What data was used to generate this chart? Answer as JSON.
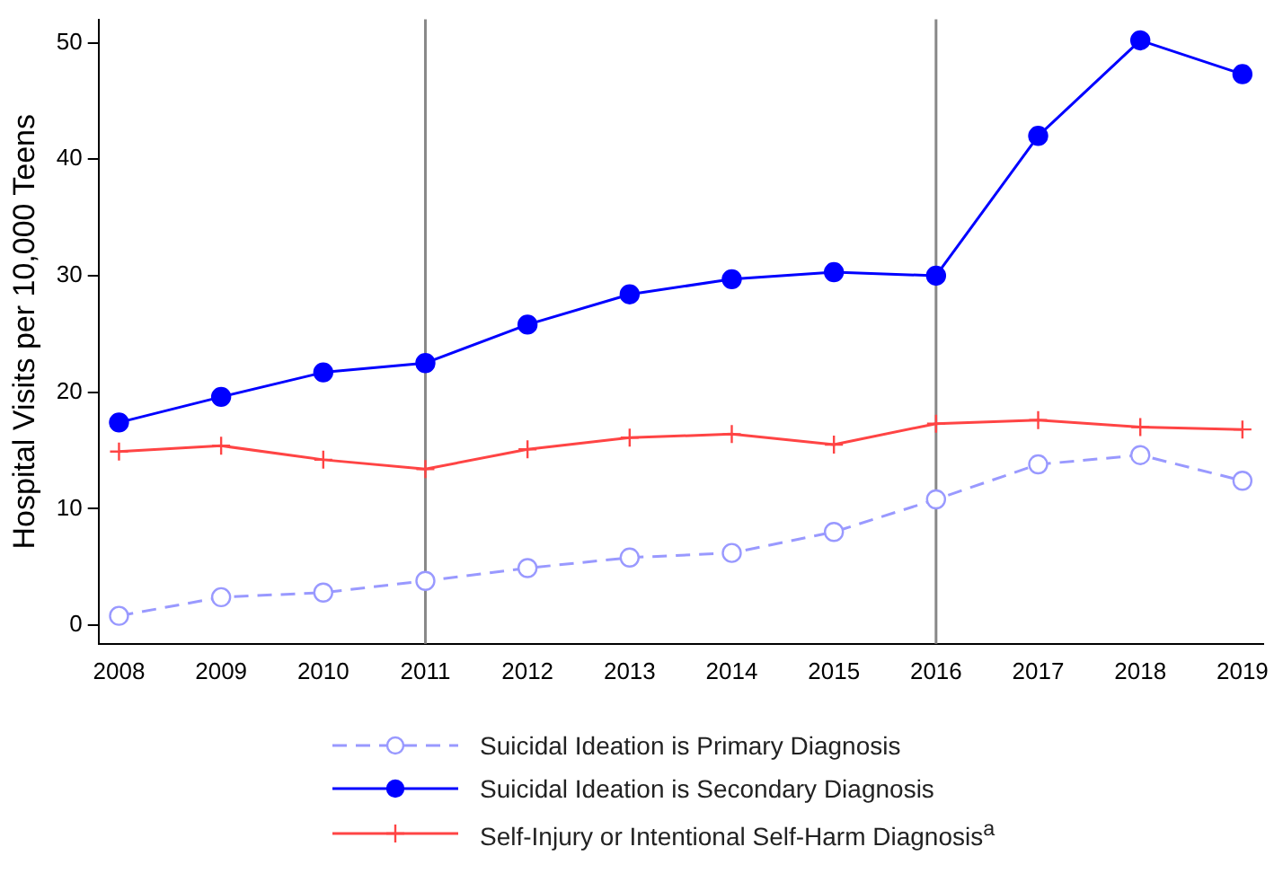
{
  "chart_data": {
    "type": "line",
    "ylabel": "Hospital Visits per 10,000 Teens",
    "x": [
      2008,
      2009,
      2010,
      2011,
      2012,
      2013,
      2014,
      2015,
      2016,
      2017,
      2018,
      2019
    ],
    "xlim": [
      2007.8,
      2019.2
    ],
    "xticks": [
      2008,
      2009,
      2010,
      2011,
      2012,
      2013,
      2014,
      2015,
      2016,
      2017,
      2018,
      2019
    ],
    "ylim": [
      -1.6,
      52
    ],
    "yticks": [
      0,
      10,
      20,
      30,
      40,
      50
    ],
    "series": [
      {
        "name": "Suicidal Ideation is Primary Diagnosis",
        "color": "#9999ff",
        "marker": "circle",
        "line_style": "dashed",
        "values": [
          0.8,
          2.4,
          2.8,
          3.8,
          4.9,
          5.8,
          6.2,
          8.0,
          10.8,
          13.8,
          14.6,
          12.4
        ]
      },
      {
        "name": "Suicidal Ideation is Secondary Diagnosis",
        "color": "#0000ff",
        "marker": "circle",
        "line_style": "solid",
        "values": [
          17.4,
          19.6,
          21.7,
          22.5,
          25.8,
          28.4,
          29.7,
          30.3,
          30.0,
          42.0,
          50.2,
          47.3
        ]
      },
      {
        "name": "Self-Injury or Intentional Self-Harm Diagnosis$^{a}$",
        "color": "#ff4444",
        "marker": "cross",
        "line_style": "solid",
        "values": [
          14.9,
          15.4,
          14.2,
          13.4,
          15.1,
          16.1,
          16.4,
          15.5,
          17.3,
          17.6,
          17.0,
          16.8
        ]
      }
    ],
    "ref_lines": [
      {
        "axis": "x",
        "value": 2011,
        "color": "#888888"
      },
      {
        "axis": "x",
        "value": 2016,
        "color": "#888888"
      }
    ],
    "grid": false,
    "legend": "bottom"
  }
}
